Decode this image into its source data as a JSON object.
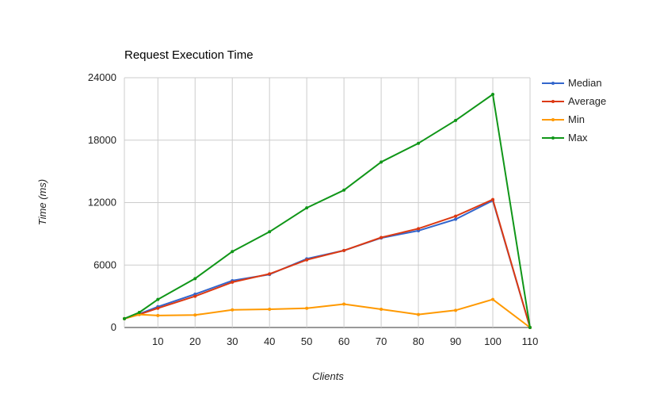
{
  "chart_data": {
    "type": "line",
    "title": "Request Execution Time",
    "xlabel": "Clients",
    "ylabel": "Time (ms)",
    "x": [
      1,
      5,
      10,
      20,
      30,
      40,
      50,
      60,
      70,
      80,
      90,
      100,
      110
    ],
    "x_ticks": [
      10,
      20,
      30,
      40,
      50,
      60,
      70,
      80,
      90,
      100,
      110
    ],
    "y_ticks": [
      0,
      6000,
      12000,
      18000,
      24000
    ],
    "xlim": [
      1,
      110
    ],
    "ylim": [
      0,
      24000
    ],
    "grid": true,
    "legend_position": "right",
    "series": [
      {
        "name": "Median",
        "color": "#3366cc",
        "values": [
          850,
          1300,
          2000,
          3200,
          4500,
          5100,
          6600,
          7400,
          8600,
          9300,
          10400,
          12200,
          0
        ]
      },
      {
        "name": "Average",
        "color": "#dc3912",
        "values": [
          850,
          1250,
          1850,
          3000,
          4350,
          5150,
          6500,
          7400,
          8650,
          9500,
          10700,
          12300,
          0
        ]
      },
      {
        "name": "Min",
        "color": "#ff9900",
        "values": [
          850,
          1250,
          1150,
          1200,
          1700,
          1750,
          1850,
          2250,
          1750,
          1250,
          1650,
          2700,
          0
        ]
      },
      {
        "name": "Max",
        "color": "#109618",
        "values": [
          850,
          1450,
          2700,
          4700,
          7300,
          9200,
          11500,
          13200,
          15900,
          17700,
          19900,
          22400,
          0
        ]
      }
    ]
  }
}
